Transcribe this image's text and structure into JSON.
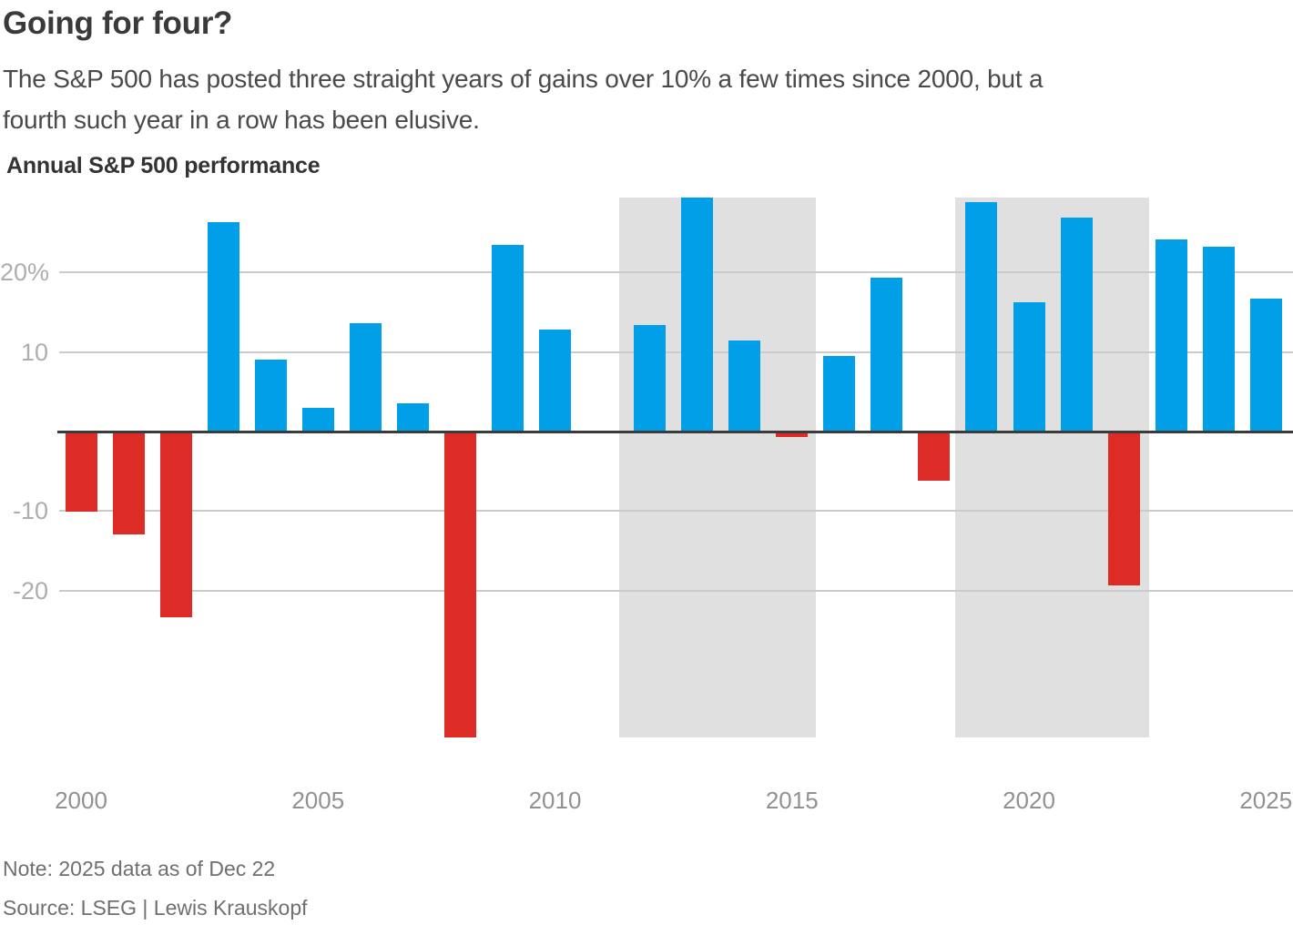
{
  "header": {
    "title": "Going for four?",
    "subtitle_lines": [
      "The S&P 500 has posted three straight years of gains over 10% a few times since 2000, but a",
      "fourth such year in a row has been elusive."
    ],
    "chart_label": "Annual S&P 500 performance"
  },
  "chart_data": {
    "type": "bar",
    "title": "Annual S&P 500 performance",
    "unit": "percent",
    "categories": [
      2000,
      2001,
      2002,
      2003,
      2004,
      2005,
      2006,
      2007,
      2008,
      2009,
      2010,
      2011,
      2012,
      2013,
      2014,
      2015,
      2016,
      2017,
      2018,
      2019,
      2020,
      2021,
      2022,
      2023,
      2024,
      2025
    ],
    "values": [
      -10.1,
      -13.0,
      -23.4,
      26.4,
      9.0,
      3.0,
      13.6,
      3.5,
      -38.5,
      23.5,
      12.8,
      0.0,
      13.4,
      29.6,
      11.4,
      -0.7,
      9.5,
      19.4,
      -6.2,
      28.9,
      16.3,
      26.9,
      -19.4,
      24.2,
      23.3,
      16.7
    ],
    "ylim": [
      -38.5,
      29.6
    ],
    "y_gridlines": [
      20,
      10,
      -10,
      -20
    ],
    "y_tick_labels": [
      "20%",
      "10",
      "-10",
      "-20"
    ],
    "x_tick_years": [
      2000,
      2005,
      2010,
      2015,
      2020,
      2025
    ],
    "x_tick_labels": [
      "2000",
      "2005",
      "2010",
      "2015",
      "2020",
      "2025"
    ],
    "grid": "horizontal",
    "legend": "none",
    "bar_colors": {
      "positive": "#009fe8",
      "negative": "#dd2c26"
    },
    "highlight_regions": [
      {
        "from_year": 2012,
        "to_year": 2015,
        "color": "#e0e0e0"
      },
      {
        "from_year": 2019,
        "to_year": 2022,
        "color": "#e0e0e0"
      }
    ]
  },
  "footer": {
    "note": "Note: 2025 data as of Dec 22",
    "source": "Source: LSEG | Lewis Krauskopf"
  }
}
